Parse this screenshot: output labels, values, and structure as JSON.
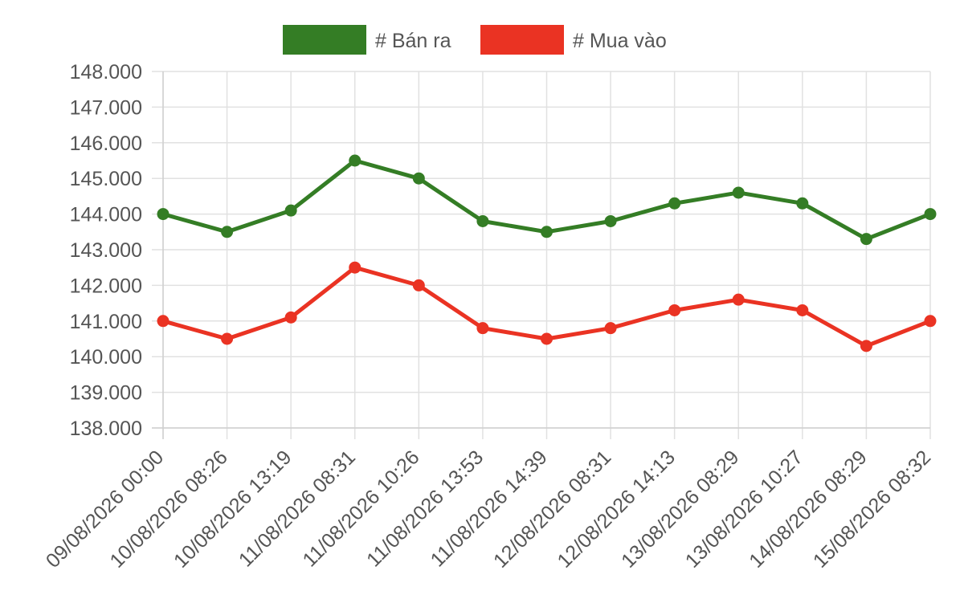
{
  "chart_data": {
    "type": "line",
    "title": "",
    "xlabel": "",
    "ylabel": "",
    "categories": [
      "09/08/2026 00:00",
      "10/08/2026 08:26",
      "10/08/2026 13:19",
      "11/08/2026 08:31",
      "11/08/2026 10:26",
      "11/08/2026 13:53",
      "11/08/2026 14:39",
      "12/08/2026 08:31",
      "12/08/2026 14:13",
      "13/08/2026 08:29",
      "13/08/2026 10:27",
      "14/08/2026 08:29",
      "15/08/2026 08:32"
    ],
    "series": [
      {
        "name": "# Bán ra",
        "color": "#347d25",
        "values": [
          144.0,
          143.5,
          144.1,
          145.5,
          145.0,
          143.8,
          143.5,
          143.8,
          144.3,
          144.6,
          144.3,
          143.3,
          144.0
        ]
      },
      {
        "name": "# Mua vào",
        "color": "#ea3323",
        "values": [
          141.0,
          140.5,
          141.1,
          142.5,
          142.0,
          140.8,
          140.5,
          140.8,
          141.3,
          141.6,
          141.3,
          140.3,
          141.0
        ]
      }
    ],
    "ylim": [
      138.0,
      148.0
    ],
    "yticks": [
      {
        "value": 148.0,
        "label": "148.000"
      },
      {
        "value": 147.0,
        "label": "147.000"
      },
      {
        "value": 146.0,
        "label": "146.000"
      },
      {
        "value": 145.0,
        "label": "145.000"
      },
      {
        "value": 144.0,
        "label": "144.000"
      },
      {
        "value": 143.0,
        "label": "143.000"
      },
      {
        "value": 142.0,
        "label": "142.000"
      },
      {
        "value": 141.0,
        "label": "141.000"
      },
      {
        "value": 140.0,
        "label": "140.000"
      },
      {
        "value": 139.0,
        "label": "139.000"
      },
      {
        "value": 138.0,
        "label": "138.000"
      }
    ],
    "grid": true,
    "legend_position": "top-center"
  }
}
